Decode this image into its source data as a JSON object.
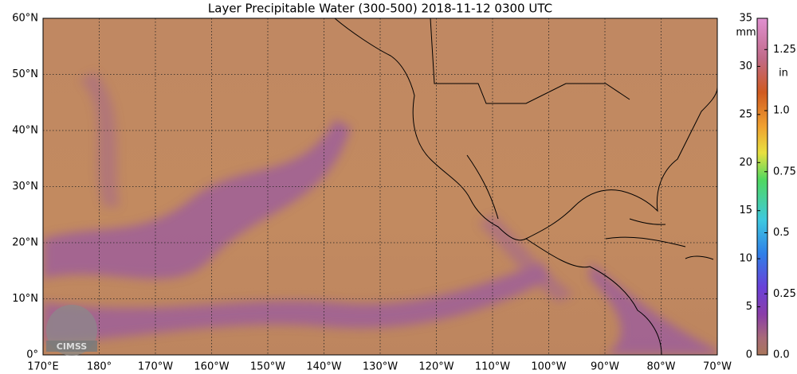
{
  "map": {
    "title": "Layer Precipitable Water (300-500)  2018-11-12 0300 UTC",
    "lonlim": [
      170,
      290
    ],
    "latlim": [
      0,
      60
    ],
    "lon_ticks": [
      {
        "value": 170,
        "label": "170°E"
      },
      {
        "value": 180,
        "label": "180°"
      },
      {
        "value": 190,
        "label": "170°W"
      },
      {
        "value": 200,
        "label": "160°W"
      },
      {
        "value": 210,
        "label": "150°W"
      },
      {
        "value": 220,
        "label": "140°W"
      },
      {
        "value": 230,
        "label": "130°W"
      },
      {
        "value": 240,
        "label": "120°W"
      },
      {
        "value": 250,
        "label": "110°W"
      },
      {
        "value": 260,
        "label": "100°W"
      },
      {
        "value": 270,
        "label": "90°W"
      },
      {
        "value": 280,
        "label": "80°W"
      },
      {
        "value": 290,
        "label": "70°W"
      }
    ],
    "lat_ticks": [
      {
        "value": 0,
        "label": "0°"
      },
      {
        "value": 10,
        "label": "10°N"
      },
      {
        "value": 20,
        "label": "20°N"
      },
      {
        "value": 30,
        "label": "30°N"
      },
      {
        "value": 40,
        "label": "40°N"
      },
      {
        "value": 50,
        "label": "50°N"
      },
      {
        "value": 60,
        "label": "60°N"
      }
    ],
    "logo": "CIMSS"
  },
  "colorbar": {
    "unit_mm": "mm",
    "unit_in": "in",
    "ylim": [
      0,
      35
    ],
    "yticks": [
      0,
      5,
      10,
      15,
      20,
      25,
      30,
      35
    ],
    "y2lim": [
      0,
      1.378
    ],
    "y2ticks": [
      {
        "value": 0,
        "label": "0.0"
      },
      0.25,
      0.5,
      0.75,
      {
        "value": 1,
        "label": "1.0"
      },
      1.25
    ]
  }
}
